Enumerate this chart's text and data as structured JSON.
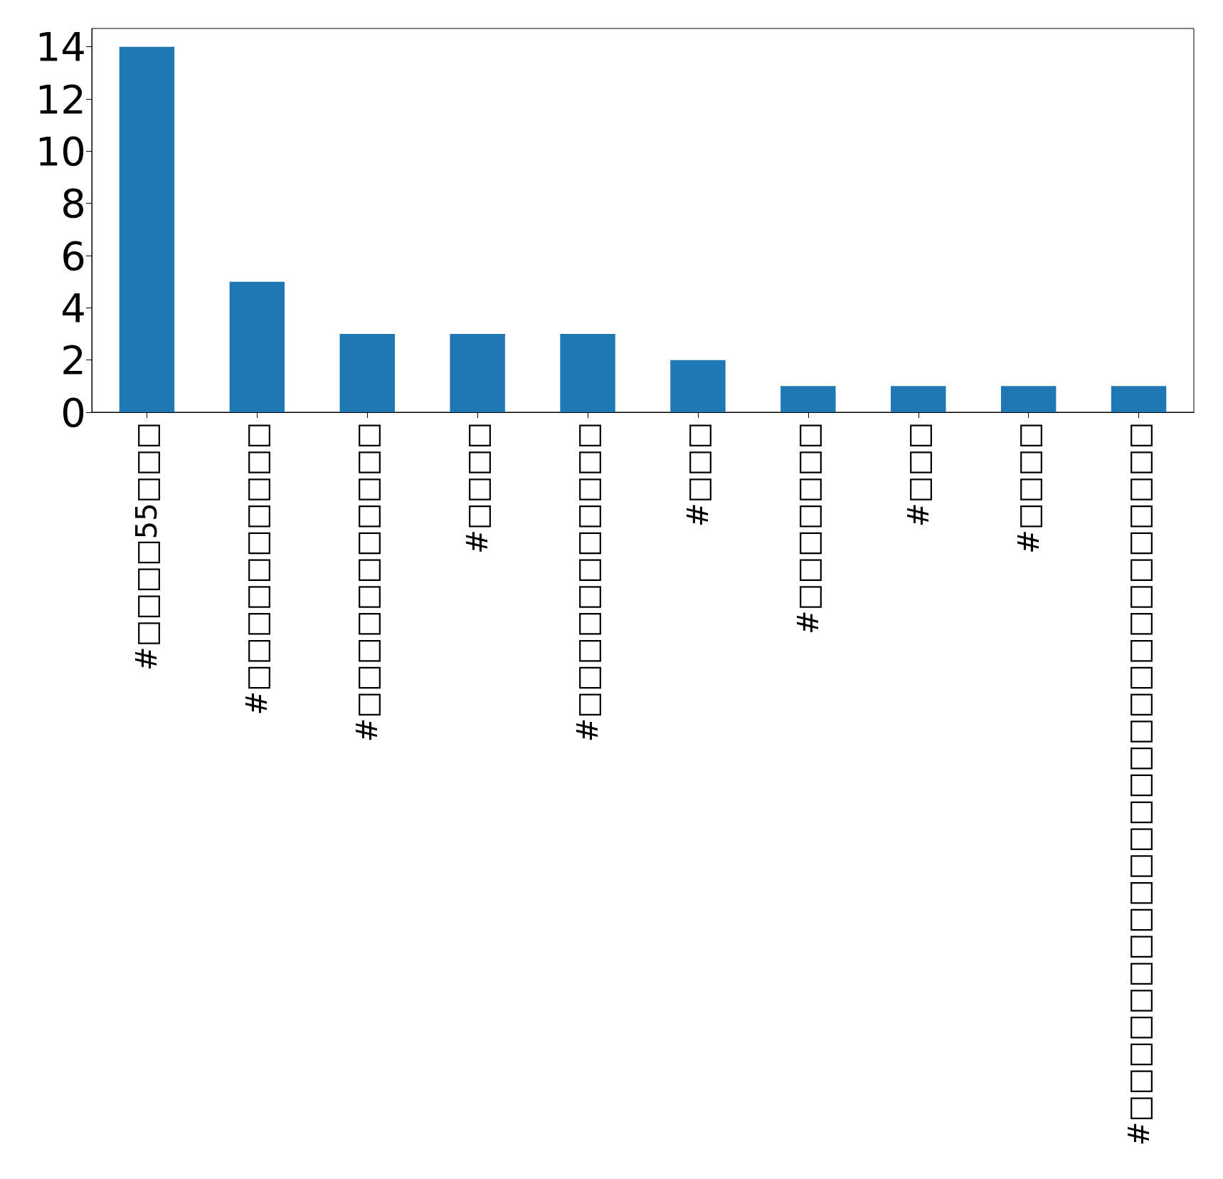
{
  "chart_data": {
    "type": "bar",
    "categories": [
      "#□□□□55□□□",
      "#□□□□□□□□□□",
      "#□□□□□□□□□□□",
      "#□□□□",
      "#□□□□□□□□□□□",
      "#□□□",
      "#□□□□□□□",
      "#□□□",
      "#□□□□",
      "#□□□□□□□□□□□□□□□□□□□□□□□□□□"
    ],
    "values": [
      14,
      5,
      3,
      3,
      3,
      2,
      1,
      1,
      1,
      1
    ],
    "color": "#1f77b4",
    "ylim": [
      0,
      14.7
    ],
    "yticks": [
      0,
      2,
      4,
      6,
      8,
      10,
      12,
      14
    ],
    "grid": false
  }
}
